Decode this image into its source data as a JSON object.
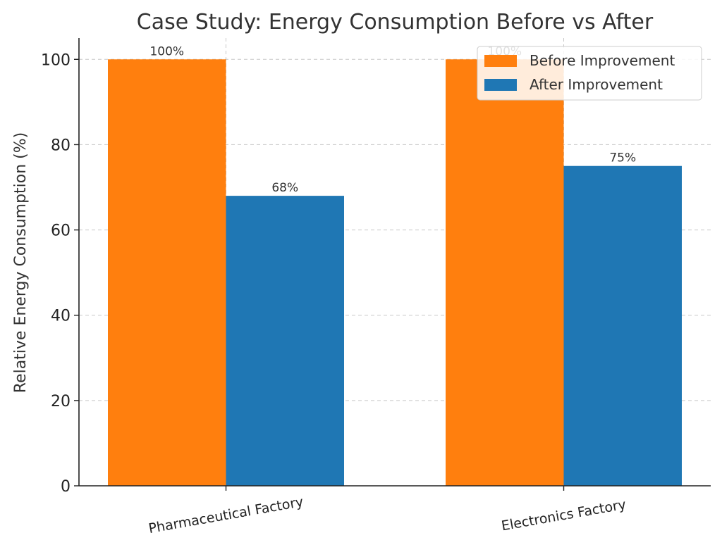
{
  "chart_data": {
    "type": "bar",
    "title": "Case Study: Energy Consumption Before vs After",
    "xlabel": "",
    "ylabel": "Relative Energy Consumption (%)",
    "categories": [
      "Pharmaceutical Factory",
      "Electronics Factory"
    ],
    "series": [
      {
        "name": "Before Improvement",
        "color": "#ff7f0e",
        "values": [
          100,
          100
        ],
        "labels": [
          "100%",
          "100%"
        ]
      },
      {
        "name": "After Improvement",
        "color": "#1f77b4",
        "values": [
          68,
          75
        ],
        "labels": [
          "68%",
          "75%"
        ]
      }
    ],
    "ylim": [
      0,
      105
    ],
    "yticks": [
      0,
      20,
      40,
      60,
      80,
      100
    ],
    "grid": true,
    "legend_position": "top-right"
  }
}
